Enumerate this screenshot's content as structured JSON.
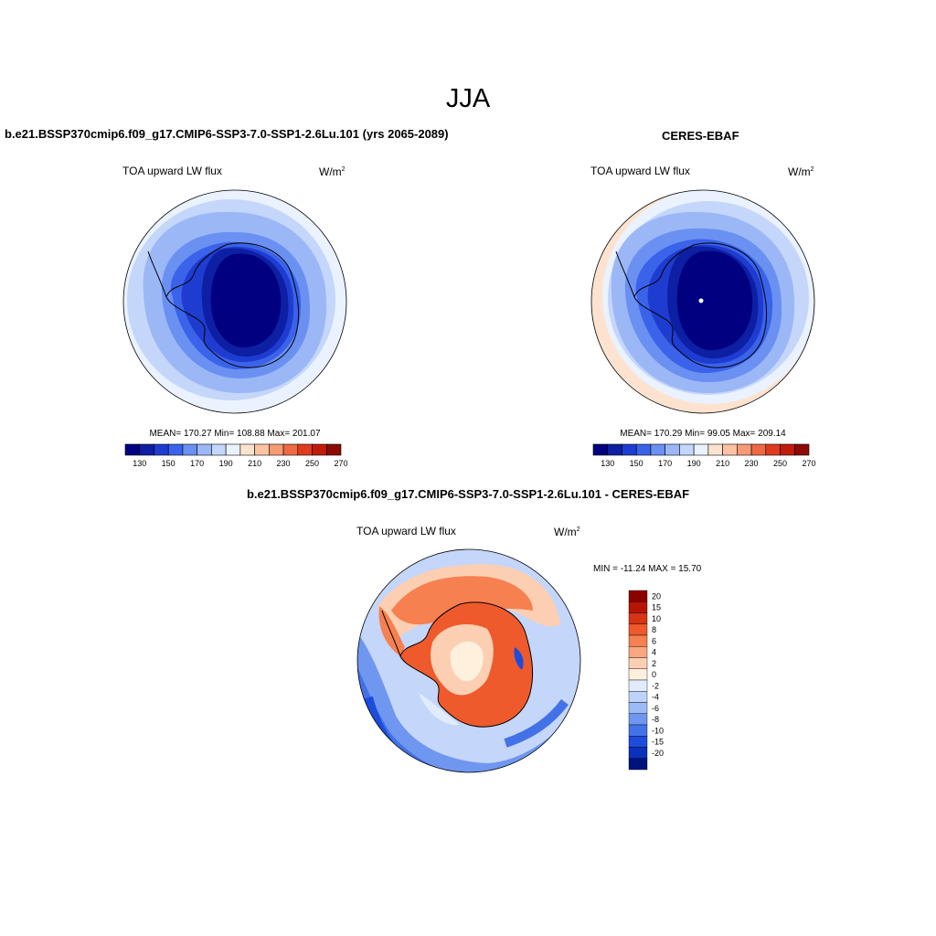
{
  "figure": {
    "season": "JJA",
    "diff_title": "b.e21.BSSP370cmip6.f09_g17.CMIP6-SSP3-7.0-SSP1-2.6Lu.101 - CERES-EBAF",
    "panel_left": {
      "title": "b.e21.BSSP370cmip6.f09_g17.CMIP6-SSP3-7.0-SSP1-2.6Lu.101 (yrs 2065-2089)",
      "variable": "TOA upward LW flux",
      "units": "W/m",
      "units_sup": "2",
      "stats": "MEAN= 170.27  Min= 108.88  Max= 201.07"
    },
    "panel_right": {
      "title": "CERES-EBAF",
      "variable": "TOA upward LW flux",
      "units": "W/m",
      "units_sup": "2",
      "stats": "MEAN= 170.29  Min=  99.05  Max= 209.14"
    },
    "panel_diff": {
      "variable": "TOA upward LW flux",
      "units": "W/m",
      "units_sup": "2",
      "stats": "MIN = -11.24 MAX =  15.70"
    }
  },
  "colorbar_abs": {
    "colors": [
      "#000080",
      "#0d1fa3",
      "#1f3cd0",
      "#3a63ea",
      "#6a90f2",
      "#9bb7f6",
      "#c4d6fa",
      "#eaf2ff",
      "#fde3cf",
      "#fbc2a4",
      "#f69a73",
      "#ee6a45",
      "#df3b1e",
      "#bf1c0c",
      "#8c0a04"
    ],
    "labels": [
      "130",
      "150",
      "170",
      "190",
      "210",
      "230",
      "250",
      "270"
    ]
  },
  "colorbar_diff": {
    "colors": [
      "#8c0000",
      "#b81406",
      "#d63415",
      "#ee5a2c",
      "#f6804f",
      "#f9a77f",
      "#fccfb3",
      "#fff0de",
      "#e0ecfc",
      "#bfd3fa",
      "#9cbbf6",
      "#6f97ef",
      "#4372e8",
      "#1d4cdc",
      "#0c2fbc",
      "#00137c"
    ],
    "labels": [
      "20",
      "15",
      "10",
      "8",
      "6",
      "4",
      "2",
      "0",
      "-2",
      "-4",
      "-6",
      "-8",
      "-10",
      "-15",
      "-20"
    ]
  }
}
